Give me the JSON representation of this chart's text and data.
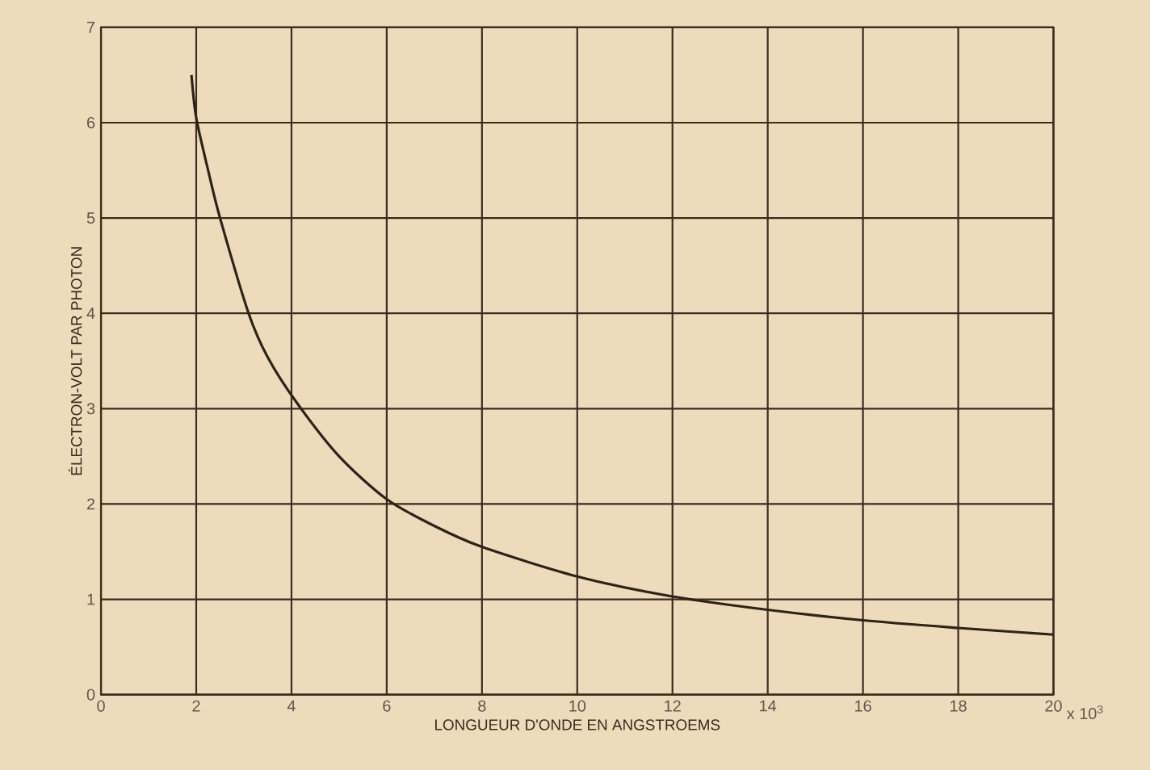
{
  "chart_data": {
    "type": "line",
    "xlabel": "LONGUEUR D'ONDE EN ANGSTROEMS",
    "ylabel": "ÉLECTRON-VOLT PAR PHOTON",
    "annotations": [
      "x 10$^{3}$"
    ],
    "x": [
      1.9,
      2.0,
      2.25,
      2.5,
      3.1,
      3.5,
      4.1,
      5.0,
      6.0,
      7.0,
      8.0,
      10.0,
      12.0,
      14.0,
      16.0,
      18.0,
      20.0
    ],
    "series": [
      {
        "color": "#2e2318",
        "values": [
          6.5,
          6.05,
          5.5,
          5.0,
          4.0,
          3.54,
          3.07,
          2.5,
          2.05,
          1.77,
          1.55,
          1.24,
          1.03,
          0.89,
          0.78,
          0.7,
          0.63
        ]
      }
    ],
    "xlim": [
      0,
      20
    ],
    "ylim": [
      0,
      7
    ],
    "xticks": [
      0,
      2,
      4,
      6,
      8,
      10,
      12,
      14,
      16,
      18,
      20
    ],
    "yticks": [
      0,
      1,
      2,
      3,
      4,
      5,
      6,
      7
    ],
    "grid": true,
    "marker": "none",
    "line_style": "solid"
  }
}
